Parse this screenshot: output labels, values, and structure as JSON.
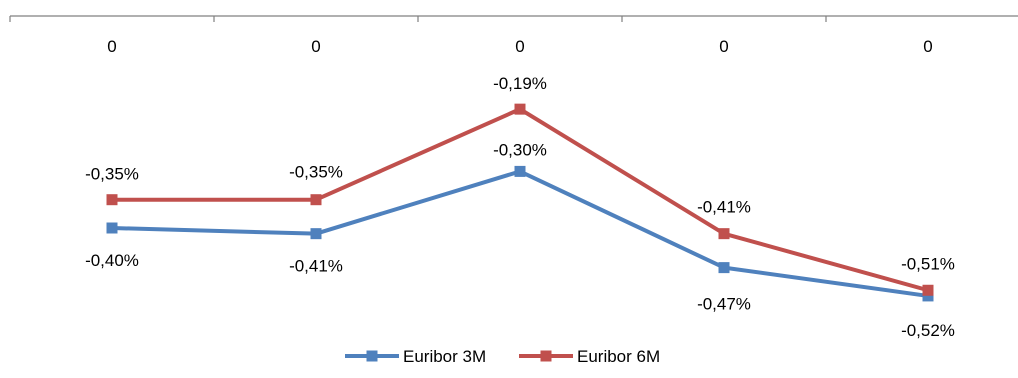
{
  "chart_data": {
    "type": "line",
    "categories": [
      "0",
      "0",
      "0",
      "0",
      "0"
    ],
    "series": [
      {
        "name": "Euribor 3M",
        "values": [
          -0.4,
          -0.41,
          -0.3,
          -0.47,
          -0.52
        ],
        "labels": [
          "-0,40%",
          "-0,41%",
          "-0,30%",
          "-0,47%",
          "-0,52%"
        ],
        "color": "#4F81BD"
      },
      {
        "name": "Euribor 6M",
        "values": [
          -0.35,
          -0.35,
          -0.19,
          -0.41,
          -0.51
        ],
        "labels": [
          "-0,35%",
          "-0,35%",
          "-0,19%",
          "-0,41%",
          "-0,51%"
        ],
        "color": "#C0504D"
      }
    ],
    "legend": "bottom",
    "grid": false,
    "axis_color": "#808080"
  }
}
